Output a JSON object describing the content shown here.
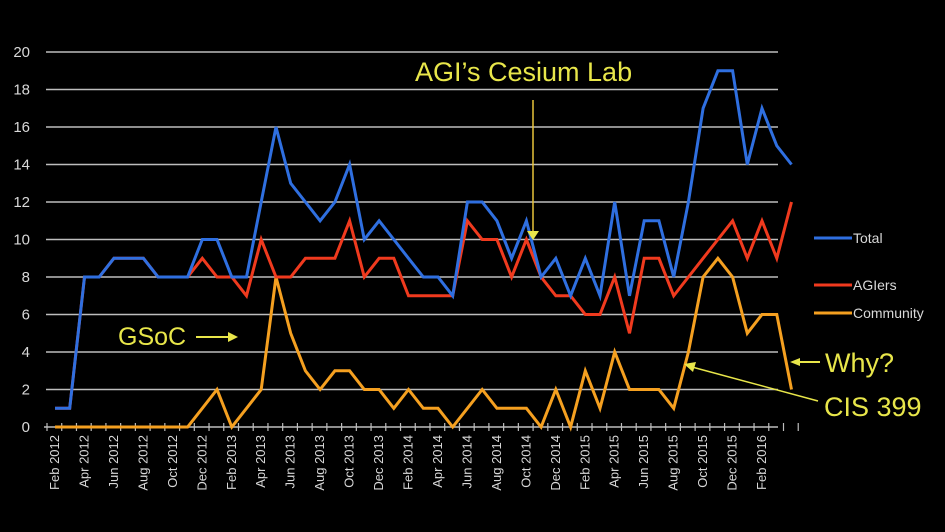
{
  "chart_data": {
    "type": "line",
    "title": "",
    "xlabel": "",
    "ylabel": "",
    "ylim": [
      0,
      20
    ],
    "yticks": [
      0,
      2,
      4,
      6,
      8,
      10,
      12,
      14,
      16,
      18,
      20
    ],
    "grid": true,
    "legend_position": "right",
    "x_tick_labels": [
      "Feb 2012",
      "Apr 2012",
      "Jun 2012",
      "Aug 2012",
      "Oct 2012",
      "Dec 2012",
      "Feb 2013",
      "Apr 2013",
      "Jun 2013",
      "Aug 2013",
      "Oct 2013",
      "Dec 2013",
      "Feb 2014",
      "Apr 2014",
      "Jun 2014",
      "Aug 2014",
      "Oct 2014",
      "Dec 2014",
      "Feb 2015",
      "Apr 2015",
      "Jun 2015",
      "Aug 2015",
      "Oct 2015",
      "Dec 2015",
      "Feb 2016"
    ],
    "x": [
      "Feb 2012",
      "Mar 2012",
      "Apr 2012",
      "May 2012",
      "Jun 2012",
      "Jul 2012",
      "Aug 2012",
      "Sep 2012",
      "Oct 2012",
      "Nov 2012",
      "Dec 2012",
      "Jan 2013",
      "Feb 2013",
      "Mar 2013",
      "Apr 2013",
      "May 2013",
      "Jun 2013",
      "Jul 2013",
      "Aug 2013",
      "Sep 2013",
      "Oct 2013",
      "Nov 2013",
      "Dec 2013",
      "Jan 2014",
      "Feb 2014",
      "Mar 2014",
      "Apr 2014",
      "May 2014",
      "Jun 2014",
      "Jul 2014",
      "Aug 2014",
      "Sep 2014",
      "Oct 2014",
      "Nov 2014",
      "Dec 2014",
      "Jan 2015",
      "Feb 2015",
      "Mar 2015",
      "Apr 2015",
      "May 2015",
      "Jun 2015",
      "Jul 2015",
      "Aug 2015",
      "Sep 2015",
      "Oct 2015",
      "Nov 2015",
      "Dec 2015",
      "Jan 2016",
      "Feb 2016",
      "Mar 2016",
      "Apr 2016"
    ],
    "series": [
      {
        "name": "Total",
        "color": "#2f6fe0",
        "values": [
          1,
          1,
          8,
          8,
          9,
          9,
          9,
          8,
          8,
          8,
          10,
          10,
          8,
          8,
          12,
          16,
          13,
          12,
          11,
          12,
          14,
          10,
          11,
          10,
          9,
          8,
          8,
          7,
          12,
          12,
          11,
          9,
          11,
          8,
          9,
          7,
          9,
          7,
          12,
          7,
          11,
          11,
          8,
          12,
          17,
          19,
          19,
          14,
          17,
          15,
          14
        ]
      },
      {
        "name": "AGIers",
        "color": "#f03a1e",
        "values": [
          1,
          1,
          8,
          8,
          9,
          9,
          9,
          8,
          8,
          8,
          9,
          8,
          8,
          7,
          10,
          8,
          8,
          9,
          9,
          9,
          11,
          8,
          9,
          9,
          7,
          7,
          7,
          7,
          11,
          10,
          10,
          8,
          10,
          8,
          7,
          7,
          6,
          6,
          8,
          5,
          9,
          9,
          7,
          8,
          9,
          10,
          11,
          9,
          11,
          9,
          12
        ]
      },
      {
        "name": "Community",
        "color": "#f5a020",
        "values": [
          0,
          0,
          0,
          0,
          0,
          0,
          0,
          0,
          0,
          0,
          1,
          2,
          0,
          1,
          2,
          8,
          5,
          3,
          2,
          3,
          3,
          2,
          2,
          1,
          2,
          1,
          1,
          0,
          1,
          2,
          1,
          1,
          1,
          0,
          2,
          0,
          3,
          1,
          4,
          2,
          2,
          2,
          1,
          4,
          8,
          9,
          8,
          5,
          6,
          6,
          2
        ]
      }
    ],
    "annotations": [
      {
        "text": "AGI’s Cesium Lab",
        "points_to": "Oct 2014"
      },
      {
        "text": "GSoC",
        "points_to": "Apr 2013"
      },
      {
        "text": "Why?",
        "points_to": "Apr 2016 Community"
      },
      {
        "text": "CIS 399",
        "points_to": "Aug 2015 Community"
      }
    ]
  },
  "legend": {
    "items": [
      {
        "label": "Total",
        "color": "#2f6fe0"
      },
      {
        "label": "AGIers",
        "color": "#f03a1e"
      },
      {
        "label": "Community",
        "color": "#f5a020"
      }
    ]
  },
  "annotations": {
    "cesium_lab": "AGI’s Cesium Lab",
    "gsoc": "GSoC",
    "why": "Why?",
    "cis399": "CIS 399"
  },
  "colors": {
    "background": "#000000",
    "grid": "#bdbdbd",
    "annotation": "#e8e64a"
  }
}
